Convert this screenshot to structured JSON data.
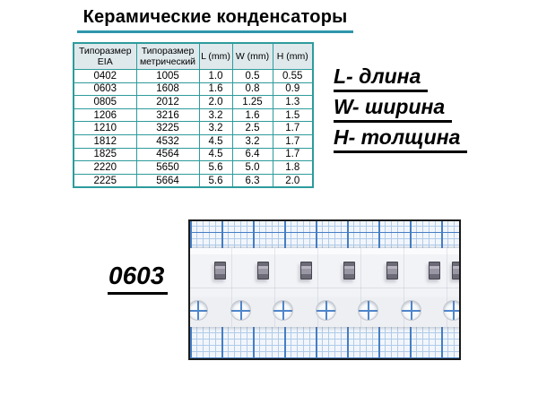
{
  "title": "Керамические конденсаторы",
  "colors": {
    "text": "#000000",
    "title_underline": "#2f96ad",
    "table_border": "#2e9b9b",
    "header_bg": "#dfe9ec",
    "photo_border": "#1a1a1a",
    "grid_bg": "#f2f6fb",
    "grid_minor": "#b0cbe9",
    "grid_major": "#447ec4",
    "tape": "#f2f3f6",
    "chip_body": "#9a97a4",
    "chip_end": "#6b6a76",
    "hole_cross": "#4f86cc"
  },
  "table": {
    "headers": [
      "Типоразмер EIA",
      "Типоразмер метрический",
      "L (mm)",
      "W (mm)",
      "H (mm)"
    ],
    "rows": [
      [
        "0402",
        "1005",
        "1.0",
        "0.5",
        "0.55"
      ],
      [
        "0603",
        "1608",
        "1.6",
        "0.8",
        "0.9"
      ],
      [
        "0805",
        "2012",
        "2.0",
        "1.25",
        "1.3"
      ],
      [
        "1206",
        "3216",
        "3.2",
        "1.6",
        "1.5"
      ],
      [
        "1210",
        "3225",
        "3.2",
        "2.5",
        "1.7"
      ],
      [
        "1812",
        "4532",
        "4.5",
        "3.2",
        "1.7"
      ],
      [
        "1825",
        "4564",
        "4.5",
        "6.4",
        "1.7"
      ],
      [
        "2220",
        "5650",
        "5.6",
        "5.0",
        "1.8"
      ],
      [
        "2225",
        "5664",
        "5.6",
        "6.3",
        "2.0"
      ]
    ]
  },
  "legend": {
    "items": [
      "L- длина",
      "W- ширина",
      "H- толщина"
    ]
  },
  "photo": {
    "label": "0603",
    "chip_count": 7,
    "hole_count": 7
  }
}
